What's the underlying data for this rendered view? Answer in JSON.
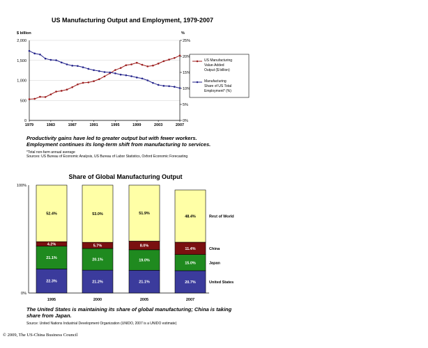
{
  "chart_data": [
    {
      "type": "line",
      "title": "US Manufacturing Output and Employment, 1979-2007",
      "y_left_unit": "$ billion",
      "y_right_unit": "%",
      "ylim_left": [
        0,
        2000
      ],
      "ylim_right": [
        0,
        25
      ],
      "y_left_ticks": [
        "0",
        "500",
        "1,000",
        "1,500",
        "2,000"
      ],
      "y_right_ticks": [
        "0%",
        "5%",
        "10%",
        "15%",
        "20%",
        "25%"
      ],
      "x_ticks": [
        "1979",
        "1983",
        "1987",
        "1991",
        "1995",
        "1999",
        "2003",
        "2007"
      ],
      "x": [
        1979,
        1980,
        1981,
        1982,
        1983,
        1984,
        1985,
        1986,
        1987,
        1988,
        1989,
        1990,
        1991,
        1992,
        1993,
        1994,
        1995,
        1996,
        1997,
        1998,
        1999,
        2000,
        2001,
        2002,
        2003,
        2004,
        2005,
        2006,
        2007
      ],
      "series": [
        {
          "name": "US Manufacturing Value-Added Output ($ billion)",
          "axis": "left",
          "color": "#9b1b1b",
          "values": [
            530,
            540,
            590,
            585,
            650,
            720,
            740,
            770,
            830,
            900,
            940,
            950,
            980,
            1030,
            1100,
            1180,
            1260,
            1310,
            1380,
            1400,
            1440,
            1390,
            1350,
            1370,
            1420,
            1480,
            1520,
            1560,
            1620
          ]
        },
        {
          "name": "Manufacturing Share of US Total Employment* (%)",
          "axis": "right",
          "color": "#22228a",
          "values": [
            21.7,
            20.9,
            20.6,
            19.3,
            18.9,
            18.8,
            18.1,
            17.5,
            17.1,
            17.0,
            16.6,
            16.1,
            15.7,
            15.4,
            15.1,
            15.0,
            14.7,
            14.3,
            14.1,
            13.8,
            13.4,
            13.1,
            12.5,
            11.7,
            11.1,
            10.8,
            10.7,
            10.5,
            10.1
          ]
        }
      ]
    },
    {
      "type": "bar",
      "stacked": true,
      "title": "Share of Global Manufacturing Output",
      "y_ticks": [
        "0%",
        "100%"
      ],
      "categories": [
        "1995",
        "2000",
        "2005",
        "2007"
      ],
      "series": [
        {
          "name": "United States",
          "color": "#3b3b9c",
          "values": [
            22.3,
            21.2,
            21.1,
            20.7
          ],
          "labels": [
            "22.3%",
            "21.2%",
            "21.1%",
            "20.7%"
          ]
        },
        {
          "name": "Japan",
          "color": "#1f8a1f",
          "values": [
            21.1,
            20.1,
            19.0,
            15.0
          ],
          "labels": [
            "21.1%",
            "20.1%",
            "19.0%",
            "15.0%"
          ]
        },
        {
          "name": "China",
          "color": "#7a1010",
          "values": [
            4.2,
            5.7,
            8.0,
            11.4
          ],
          "labels": [
            "4.2%",
            "5.7%",
            "8.0%",
            "11.4%"
          ]
        },
        {
          "name": "Rest of World",
          "color": "#ffffa6",
          "values": [
            52.4,
            53.0,
            51.9,
            48.4
          ],
          "labels": [
            "52.4%",
            "53.0%",
            "51.9%",
            "48.4%"
          ]
        }
      ]
    }
  ],
  "captions": {
    "chart1": "Productivity gains have led to greater output but with fewer workers. Employment continues its long-term shift from manufacturing to services.",
    "chart1_note": "*Total non-farm annual average",
    "chart1_sources": "Sources: US Bureau of Economic Analysis, US Bureau of Labor Statistics, Oxford Economic Forecasting",
    "chart2": "The United States is maintaining its share of global manufacturing; China is taking share from Japan.",
    "chart2_source": "Source: United Nations Industrial Development Organization (UNIDO, 2007 is a UNIDO estimate)"
  },
  "footer": "© 2009, The US-China Business Council"
}
